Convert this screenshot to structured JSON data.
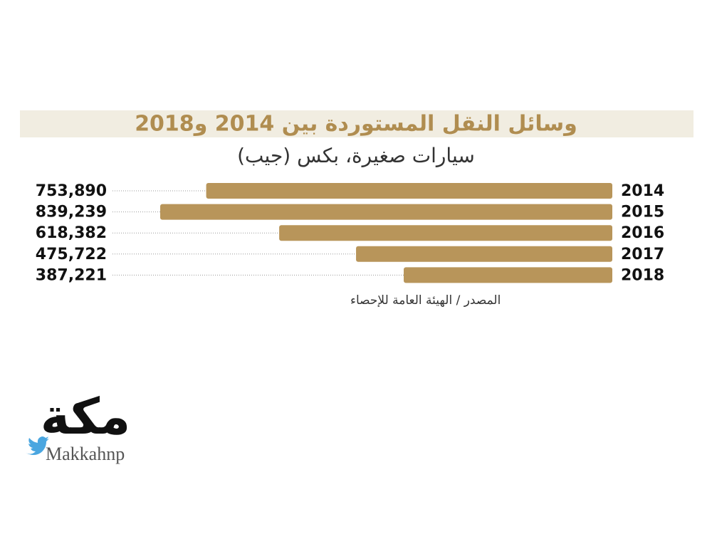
{
  "chart_data": {
    "type": "bar",
    "orientation": "horizontal",
    "title": "وسائل النقل المستوردة بين 2014 و2018",
    "subtitle": "سيارات صغيرة، بكس (جيب)",
    "categories": [
      "2014",
      "2015",
      "2016",
      "2017",
      "2018"
    ],
    "values": [
      753890,
      839239,
      618382,
      475722,
      387221
    ],
    "value_labels": [
      "753,890",
      "839,239",
      "618,382",
      "475,722",
      "387,221"
    ],
    "color": "#b8955a",
    "source": "المصدر / الهيئة العامة للإحصاء"
  },
  "logo": {
    "name": "مكة",
    "handle": "Makkahnp"
  }
}
